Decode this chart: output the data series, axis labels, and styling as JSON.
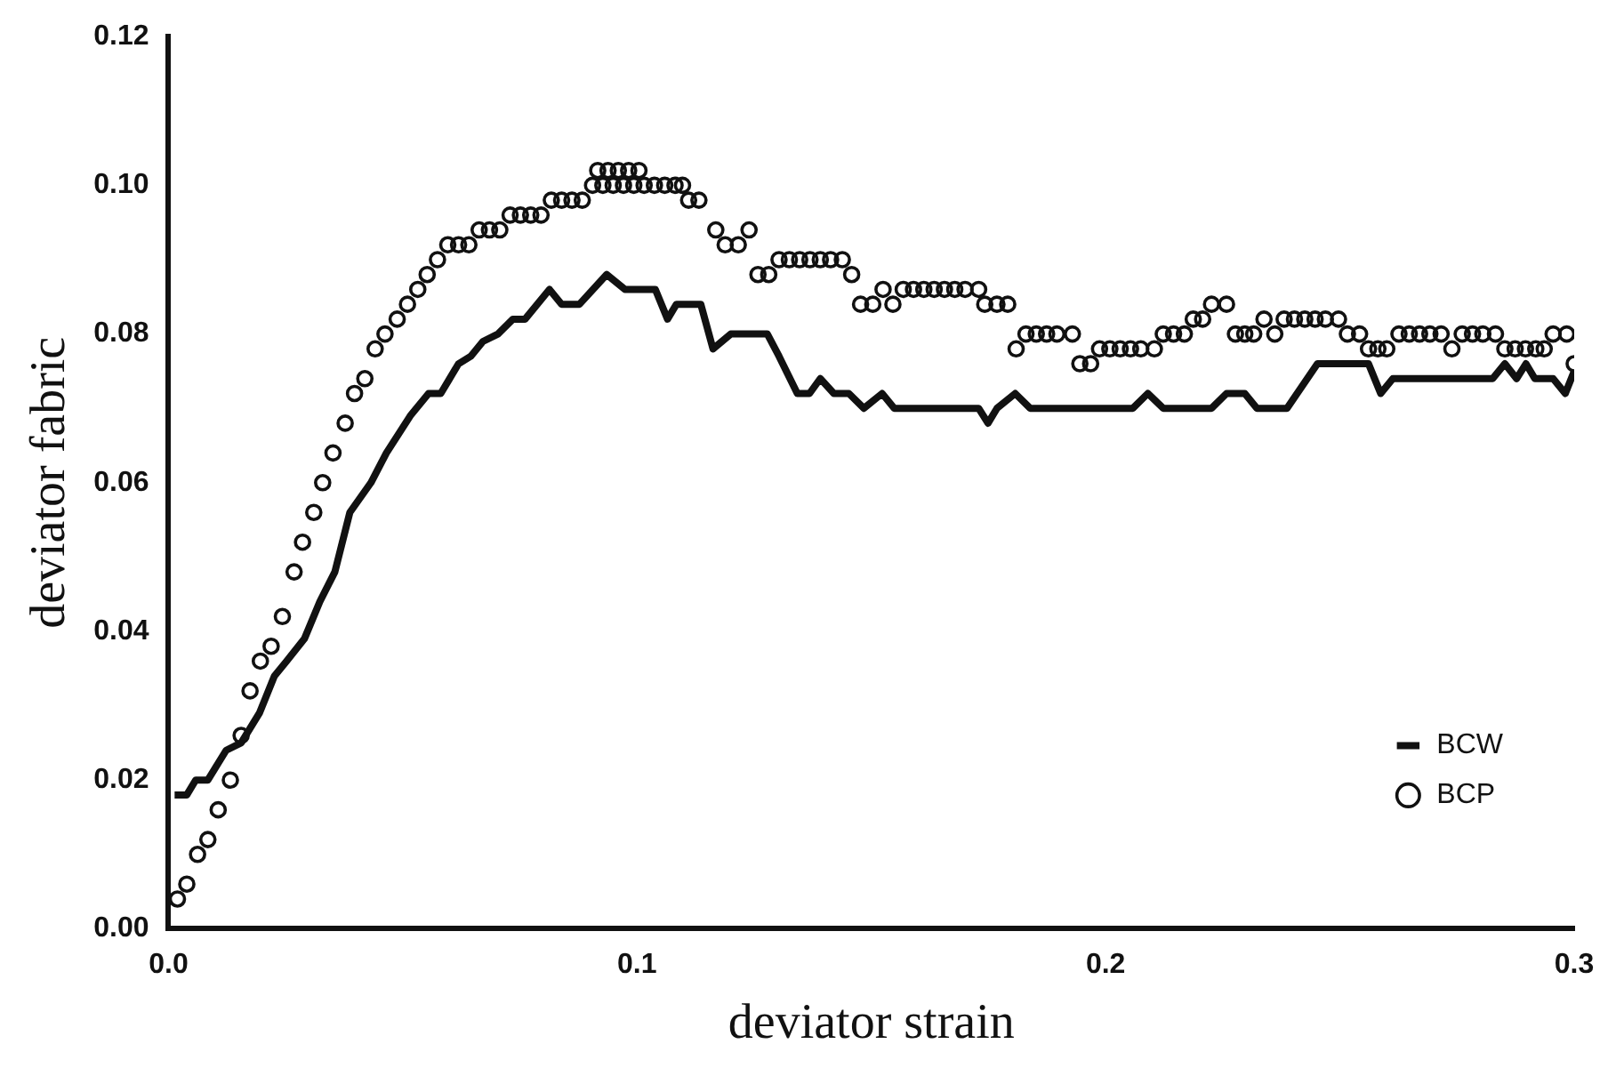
{
  "chart_data": {
    "type": "line",
    "xlabel": "deviator strain",
    "ylabel": "deviator fabric",
    "xlim": [
      0,
      0.3
    ],
    "ylim": [
      0,
      0.12
    ],
    "xticks": [
      {
        "value": 0,
        "label": "0.0"
      },
      0.1,
      0.2,
      0.3
    ],
    "yticks": [
      {
        "value": 0,
        "label": "0.00"
      },
      {
        "value": 0.02,
        "label": "0.02"
      },
      {
        "value": 0.04,
        "label": "0.04"
      },
      {
        "value": 0.06,
        "label": "0.06"
      },
      {
        "value": 0.08,
        "label": "0.08"
      },
      {
        "value": 0.1,
        "label": "0.10"
      },
      {
        "value": 0.12,
        "label": "0.12"
      }
    ],
    "grid": false,
    "legend": "bottom right",
    "series": [
      {
        "name": "BCW",
        "color": "#111111",
        "type": "line",
        "marker": "none",
        "line_style": "solid",
        "x": [
          0.0013,
          0.0039,
          0.0058,
          0.0084,
          0.0123,
          0.0155,
          0.0194,
          0.0226,
          0.0252,
          0.029,
          0.0323,
          0.0355,
          0.0387,
          0.0432,
          0.0465,
          0.0516,
          0.0555,
          0.0581,
          0.0619,
          0.0645,
          0.0671,
          0.0703,
          0.0735,
          0.0761,
          0.0813,
          0.0839,
          0.0877,
          0.0935,
          0.0974,
          0.1039,
          0.1065,
          0.1084,
          0.1123,
          0.1136,
          0.1162,
          0.12,
          0.1278,
          0.1303,
          0.1342,
          0.1368,
          0.1391,
          0.142,
          0.1452,
          0.1484,
          0.1523,
          0.1549,
          0.1729,
          0.1749,
          0.1768,
          0.1807,
          0.1839,
          0.2058,
          0.209,
          0.2123,
          0.2226,
          0.2258,
          0.2297,
          0.2323,
          0.2387,
          0.2452,
          0.2561,
          0.2587,
          0.2613,
          0.2826,
          0.2852,
          0.2877,
          0.2897,
          0.2916,
          0.2955,
          0.2981,
          0.3
        ],
        "values": [
          0.018,
          0.018,
          0.02,
          0.02,
          0.024,
          0.025,
          0.029,
          0.034,
          0.036,
          0.039,
          0.044,
          0.048,
          0.056,
          0.06,
          0.064,
          0.069,
          0.072,
          0.072,
          0.076,
          0.077,
          0.079,
          0.08,
          0.082,
          0.082,
          0.086,
          0.084,
          0.084,
          0.088,
          0.086,
          0.086,
          0.082,
          0.084,
          0.084,
          0.084,
          0.078,
          0.08,
          0.08,
          0.077,
          0.072,
          0.072,
          0.074,
          0.072,
          0.072,
          0.07,
          0.072,
          0.07,
          0.07,
          0.068,
          0.07,
          0.072,
          0.07,
          0.07,
          0.072,
          0.07,
          0.07,
          0.072,
          0.072,
          0.07,
          0.07,
          0.076,
          0.076,
          0.072,
          0.074,
          0.074,
          0.076,
          0.074,
          0.076,
          0.074,
          0.074,
          0.072,
          0.075
        ]
      },
      {
        "name": "BCP",
        "color": "#111111",
        "type": "scatter",
        "marker": "circle",
        "x": [
          0.0019,
          0.0039,
          0.0062,
          0.0084,
          0.0106,
          0.0132,
          0.0155,
          0.0174,
          0.0196,
          0.0219,
          0.0243,
          0.0268,
          0.0286,
          0.031,
          0.0329,
          0.0351,
          0.0377,
          0.0397,
          0.0419,
          0.0441,
          0.0462,
          0.0488,
          0.051,
          0.0532,
          0.0552,
          0.0574,
          0.0596,
          0.0619,
          0.0641,
          0.0663,
          0.0685,
          0.0707,
          0.0729,
          0.0751,
          0.0773,
          0.0795,
          0.0817,
          0.0839,
          0.0861,
          0.0883,
          0.0905,
          0.0916,
          0.0927,
          0.0938,
          0.0949,
          0.096,
          0.0971,
          0.0982,
          0.0993,
          0.1004,
          0.1015,
          0.1037,
          0.1059,
          0.1081,
          0.1097,
          0.111,
          0.1132,
          0.1168,
          0.1188,
          0.1216,
          0.1239,
          0.1258,
          0.1281,
          0.1303,
          0.1325,
          0.1347,
          0.1369,
          0.1391,
          0.1413,
          0.1438,
          0.1458,
          0.1477,
          0.1503,
          0.1525,
          0.1546,
          0.1568,
          0.159,
          0.1612,
          0.1634,
          0.1656,
          0.1678,
          0.17,
          0.1729,
          0.1742,
          0.1768,
          0.1791,
          0.1809,
          0.183,
          0.1852,
          0.1874,
          0.1896,
          0.1929,
          0.1945,
          0.1968,
          0.1987,
          0.2009,
          0.2031,
          0.2053,
          0.2075,
          0.2104,
          0.2123,
          0.2145,
          0.2168,
          0.2187,
          0.2207,
          0.2226,
          0.2258,
          0.2277,
          0.2297,
          0.2316,
          0.2338,
          0.2361,
          0.2381,
          0.2403,
          0.2425,
          0.2447,
          0.2469,
          0.2497,
          0.2516,
          0.2542,
          0.2561,
          0.2581,
          0.26,
          0.2626,
          0.2648,
          0.267,
          0.2692,
          0.2716,
          0.2739,
          0.2761,
          0.2783,
          0.2805,
          0.2832,
          0.2852,
          0.2874,
          0.2896,
          0.2918,
          0.2936,
          0.2955,
          0.2984,
          0.3
        ],
        "values": [
          0.004,
          0.006,
          0.01,
          0.012,
          0.016,
          0.02,
          0.026,
          0.032,
          0.036,
          0.038,
          0.042,
          0.048,
          0.052,
          0.056,
          0.06,
          0.064,
          0.068,
          0.072,
          0.074,
          0.078,
          0.08,
          0.082,
          0.084,
          0.086,
          0.088,
          0.09,
          0.092,
          0.092,
          0.092,
          0.094,
          0.094,
          0.094,
          0.096,
          0.096,
          0.096,
          0.096,
          0.098,
          0.098,
          0.098,
          0.098,
          0.1,
          0.102,
          0.1,
          0.102,
          0.1,
          0.102,
          0.1,
          0.102,
          0.1,
          0.102,
          0.1,
          0.1,
          0.1,
          0.1,
          0.1,
          0.098,
          0.098,
          0.094,
          0.092,
          0.092,
          0.094,
          0.088,
          0.088,
          0.09,
          0.09,
          0.09,
          0.09,
          0.09,
          0.09,
          0.09,
          0.088,
          0.084,
          0.084,
          0.086,
          0.084,
          0.086,
          0.086,
          0.086,
          0.086,
          0.086,
          0.086,
          0.086,
          0.086,
          0.084,
          0.084,
          0.084,
          0.078,
          0.08,
          0.08,
          0.08,
          0.08,
          0.08,
          0.076,
          0.076,
          0.078,
          0.078,
          0.078,
          0.078,
          0.078,
          0.078,
          0.08,
          0.08,
          0.08,
          0.082,
          0.082,
          0.084,
          0.084,
          0.08,
          0.08,
          0.08,
          0.082,
          0.08,
          0.082,
          0.082,
          0.082,
          0.082,
          0.082,
          0.082,
          0.08,
          0.08,
          0.078,
          0.078,
          0.078,
          0.08,
          0.08,
          0.08,
          0.08,
          0.08,
          0.078,
          0.08,
          0.08,
          0.08,
          0.08,
          0.078,
          0.078,
          0.078,
          0.078,
          0.078,
          0.08,
          0.08,
          0.076
        ]
      }
    ]
  }
}
